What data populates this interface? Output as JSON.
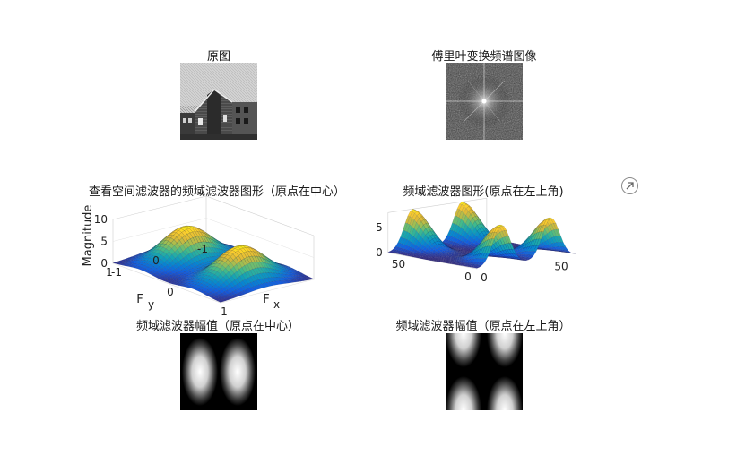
{
  "figure": {
    "export_icon": "export-arrow-icon",
    "panels": {
      "original": {
        "title": "原图"
      },
      "spectrum": {
        "title": "傅里叶变换频谱图像"
      },
      "surface_center": {
        "title": "查看空间滤波器的频域滤波器图形（原点在中心）"
      },
      "surface_corner": {
        "title": "频域滤波器图形(原点在左上角)"
      },
      "mag_center": {
        "title": "频域滤波器幅值（原点在中心）"
      },
      "mag_corner": {
        "title": "频域滤波器幅值（原点在左上角）"
      }
    }
  },
  "chart_data": [
    {
      "type": "surface",
      "title": "查看空间滤波器的频域滤波器图形（原点在中心）",
      "xlabel": "F",
      "xlabel_subscript": "x",
      "ylabel": "F",
      "ylabel_subscript": "y",
      "zlabel": "Magnitude",
      "xlim": [
        -1,
        1
      ],
      "ylim": [
        -1,
        1
      ],
      "zlim": [
        0,
        10
      ],
      "xticks": [
        "-1",
        "0",
        "1"
      ],
      "yticks": [
        "-1",
        "0",
        "1"
      ],
      "zticks": [
        "0",
        "5",
        "10"
      ],
      "peaks": [
        {
          "fx": -0.5,
          "fy": 0,
          "z": 8
        },
        {
          "fx": 0.5,
          "fy": 0,
          "z": 8
        }
      ],
      "colormap": "parula"
    },
    {
      "type": "surface",
      "title": "频域滤波器图形(原点在左上角)",
      "xlim": [
        0,
        64
      ],
      "ylim": [
        0,
        64
      ],
      "zlim": [
        0,
        8
      ],
      "xticks": [
        "0",
        "50"
      ],
      "yticks": [
        "0",
        "50"
      ],
      "zticks": [
        "0",
        "5"
      ],
      "colormap": "parula"
    },
    {
      "type": "heatmap",
      "title": "频域滤波器幅值（原点在中心）",
      "description_values": {
        "blobs": 2,
        "arrangement": "side-by-side vertical ellipses"
      }
    },
    {
      "type": "heatmap",
      "title": "频域滤波器幅值（原点在左上角）",
      "description_values": {
        "blobs": 4,
        "arrangement": "quarter blobs at left/right edges"
      }
    }
  ]
}
